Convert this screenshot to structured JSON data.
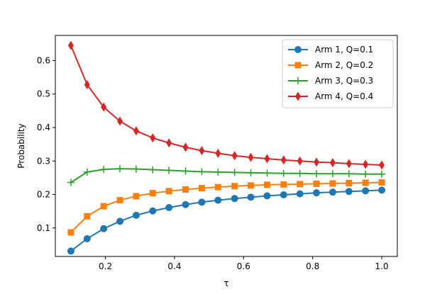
{
  "chart_data": {
    "type": "line",
    "xlabel": "τ",
    "ylabel": "Probability",
    "xlim": [
      0.055,
      1.045
    ],
    "ylim": [
      0.015,
      0.675
    ],
    "xticks": [
      0.2,
      0.4,
      0.6,
      0.8,
      1.0
    ],
    "yticks": [
      0.1,
      0.2,
      0.3,
      0.4,
      0.5,
      0.6
    ],
    "grid": false,
    "legend_position": "top-right",
    "x": [
      0.1,
      0.147,
      0.195,
      0.242,
      0.289,
      0.337,
      0.384,
      0.432,
      0.479,
      0.526,
      0.574,
      0.621,
      0.668,
      0.716,
      0.763,
      0.811,
      0.858,
      0.905,
      0.953,
      1.0
    ],
    "series": [
      {
        "name": "Arm 1, Q=0.1",
        "color": "#1f77b4",
        "marker": "circle",
        "values": [
          0.031,
          0.068,
          0.098,
          0.12,
          0.138,
          0.151,
          0.161,
          0.17,
          0.177,
          0.183,
          0.188,
          0.192,
          0.196,
          0.199,
          0.202,
          0.205,
          0.207,
          0.209,
          0.211,
          0.213
        ]
      },
      {
        "name": "Arm 2, Q=0.2",
        "color": "#ff7f0e",
        "marker": "square",
        "values": [
          0.087,
          0.135,
          0.165,
          0.183,
          0.195,
          0.204,
          0.21,
          0.215,
          0.219,
          0.222,
          0.225,
          0.227,
          0.229,
          0.23,
          0.231,
          0.232,
          0.233,
          0.234,
          0.235,
          0.236
        ]
      },
      {
        "name": "Arm 3, Q=0.3",
        "color": "#2ca02c",
        "marker": "plus",
        "values": [
          0.236,
          0.267,
          0.275,
          0.277,
          0.276,
          0.274,
          0.272,
          0.27,
          0.268,
          0.267,
          0.266,
          0.265,
          0.264,
          0.263,
          0.263,
          0.262,
          0.262,
          0.262,
          0.261,
          0.261
        ]
      },
      {
        "name": "Arm 4, Q=0.4",
        "color": "#d62728",
        "marker": "diamond",
        "values": [
          0.645,
          0.528,
          0.461,
          0.419,
          0.39,
          0.369,
          0.354,
          0.341,
          0.331,
          0.323,
          0.316,
          0.311,
          0.307,
          0.303,
          0.3,
          0.297,
          0.295,
          0.292,
          0.29,
          0.288
        ]
      }
    ]
  }
}
